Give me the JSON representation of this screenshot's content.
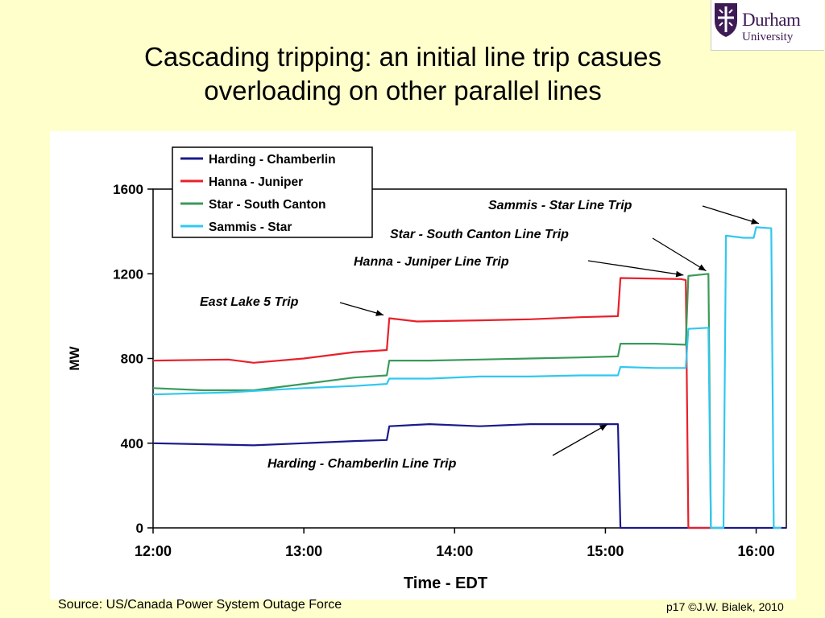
{
  "slide": {
    "title_line1": "Cascading tripping: an initial line trip casues",
    "title_line2": "overloading on other parallel lines",
    "source": "Source: US/Canada Power System Outage Force",
    "credit": "p17 ©J.W. Bialek, 2010"
  },
  "logo": {
    "name": "Durham",
    "sub": "University",
    "icon": "durham-shield-icon",
    "color": "#3d1b55"
  },
  "chart_data": {
    "type": "line",
    "title": "",
    "xlabel": "Time - EDT",
    "ylabel": "MW",
    "xlim": [
      "12:00",
      "16:12"
    ],
    "ylim": [
      0,
      1600
    ],
    "xticks": [
      "12:00",
      "13:00",
      "14:00",
      "15:00",
      "16:00"
    ],
    "yticks": [
      "0",
      "400",
      "800",
      "1200",
      "1600"
    ],
    "grid": false,
    "legend_position": "top-left",
    "series": [
      {
        "name": "Harding - Chamberlin",
        "color": "#1a1a8c",
        "points": [
          [
            "12:00",
            400
          ],
          [
            "12:40",
            390
          ],
          [
            "13:00",
            400
          ],
          [
            "13:20",
            410
          ],
          [
            "13:33",
            415
          ],
          [
            "13:34",
            480
          ],
          [
            "13:50",
            490
          ],
          [
            "14:10",
            480
          ],
          [
            "14:30",
            490
          ],
          [
            "14:50",
            490
          ],
          [
            "15:05",
            490
          ],
          [
            "15:06",
            0
          ],
          [
            "16:12",
            0
          ]
        ]
      },
      {
        "name": "Hanna - Juniper",
        "color": "#e8202a",
        "points": [
          [
            "12:00",
            790
          ],
          [
            "12:30",
            795
          ],
          [
            "12:40",
            780
          ],
          [
            "13:00",
            800
          ],
          [
            "13:20",
            830
          ],
          [
            "13:33",
            840
          ],
          [
            "13:34",
            990
          ],
          [
            "13:45",
            975
          ],
          [
            "14:10",
            980
          ],
          [
            "14:30",
            985
          ],
          [
            "14:50",
            995
          ],
          [
            "15:05",
            1000
          ],
          [
            "15:06",
            1180
          ],
          [
            "15:30",
            1175
          ],
          [
            "15:32",
            1170
          ],
          [
            "15:33",
            0
          ],
          [
            "15:42",
            0
          ]
        ]
      },
      {
        "name": "Star - South Canton",
        "color": "#3a9a5a",
        "points": [
          [
            "12:00",
            660
          ],
          [
            "12:20",
            650
          ],
          [
            "12:40",
            650
          ],
          [
            "13:00",
            680
          ],
          [
            "13:20",
            710
          ],
          [
            "13:33",
            720
          ],
          [
            "13:34",
            790
          ],
          [
            "13:50",
            790
          ],
          [
            "14:10",
            795
          ],
          [
            "14:30",
            800
          ],
          [
            "14:50",
            805
          ],
          [
            "15:05",
            810
          ],
          [
            "15:06",
            870
          ],
          [
            "15:20",
            870
          ],
          [
            "15:32",
            865
          ],
          [
            "15:33",
            1190
          ],
          [
            "15:41",
            1200
          ],
          [
            "15:42",
            0
          ],
          [
            "15:47",
            0
          ]
        ]
      },
      {
        "name": "Sammis - Star",
        "color": "#30c8f0",
        "points": [
          [
            "12:00",
            630
          ],
          [
            "12:30",
            640
          ],
          [
            "13:00",
            660
          ],
          [
            "13:20",
            670
          ],
          [
            "13:33",
            680
          ],
          [
            "13:34",
            705
          ],
          [
            "13:50",
            705
          ],
          [
            "14:10",
            715
          ],
          [
            "14:30",
            715
          ],
          [
            "14:50",
            720
          ],
          [
            "15:05",
            720
          ],
          [
            "15:06",
            760
          ],
          [
            "15:20",
            755
          ],
          [
            "15:32",
            755
          ],
          [
            "15:33",
            940
          ],
          [
            "15:41",
            945
          ],
          [
            "15:42",
            0
          ],
          [
            "15:47",
            0
          ],
          [
            "15:48",
            1380
          ],
          [
            "15:55",
            1370
          ],
          [
            "15:59",
            1370
          ],
          [
            "16:00",
            1420
          ],
          [
            "16:06",
            1415
          ],
          [
            "16:07",
            0
          ],
          [
            "16:10",
            0
          ]
        ]
      }
    ],
    "annotations": [
      {
        "text": "Sammis - Star Line Trip",
        "at": [
          "16:03",
          1430
        ]
      },
      {
        "text": "Star - South Canton Line Trip",
        "at": [
          "15:42",
          1210
        ]
      },
      {
        "text": "Hanna - Juniper Line Trip",
        "at": [
          "15:33",
          1190
        ]
      },
      {
        "text": "East Lake 5 Trip",
        "at": [
          "13:33",
          990
        ]
      },
      {
        "text": "Harding - Chamberlin Line Trip",
        "at": [
          "15:03",
          500
        ]
      }
    ]
  }
}
